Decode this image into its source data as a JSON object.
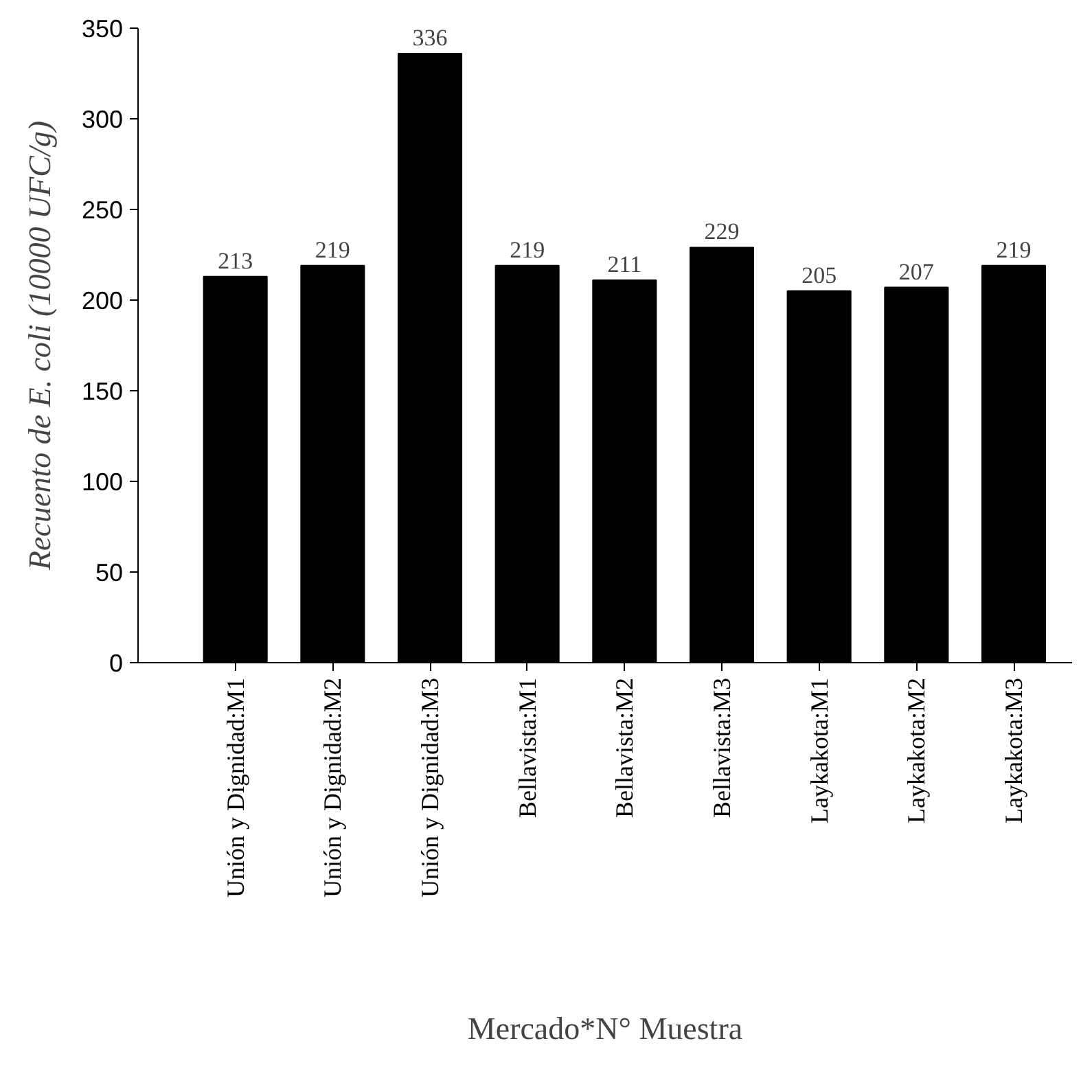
{
  "chart_data": {
    "type": "bar",
    "categories": [
      "Unión y Dignidad:M1",
      "Unión y Dignidad:M2",
      "Unión y Dignidad:M3",
      "Bellavista:M1",
      "Bellavista:M2",
      "Bellavista:M3",
      "Laykakota:M1",
      "Laykakota:M2",
      "Laykakota:M3"
    ],
    "values": [
      213,
      219,
      336,
      219,
      211,
      229,
      205,
      207,
      219
    ],
    "color": "#000000",
    "xlabel": "Mercado*N° Muestra",
    "ylabel": "Recuento de E. coli (10000 UFC/g)",
    "ylim": [
      0,
      350
    ],
    "yticks": [
      0,
      50,
      100,
      150,
      200,
      250,
      300,
      350
    ],
    "data_labels": true
  }
}
